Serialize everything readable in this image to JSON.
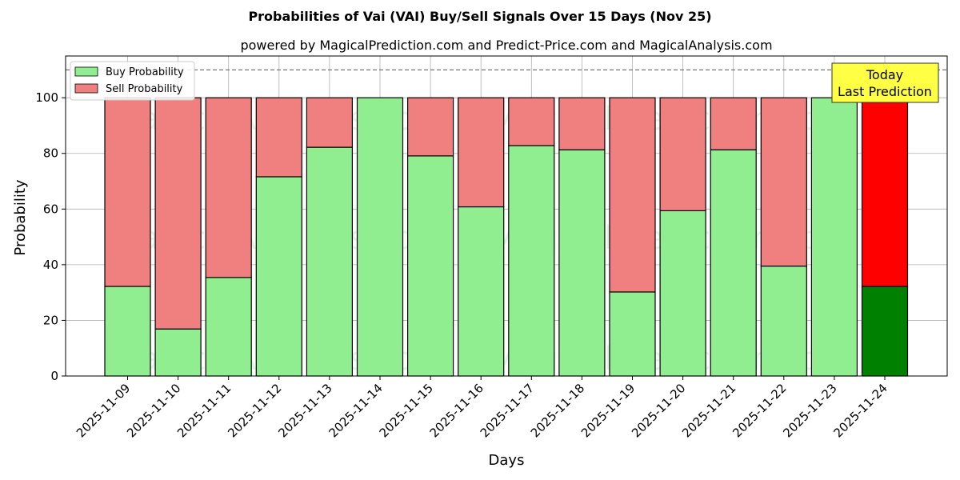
{
  "chart_data": {
    "type": "bar",
    "stacked": true,
    "title": "Probabilities of Vai (VAI) Buy/Sell Signals Over 15 Days (Nov 25)",
    "subtitle": "powered by MagicalPrediction.com and Predict-Price.com and MagicalAnalysis.com",
    "xlabel": "Days",
    "ylabel": "Probability",
    "ylim": [
      0,
      115
    ],
    "yticks": [
      0,
      20,
      40,
      60,
      80,
      100
    ],
    "grid": true,
    "legend_position": "top-left",
    "threshold_line": 110,
    "categories": [
      "2025-11-09",
      "2025-11-10",
      "2025-11-11",
      "2025-11-12",
      "2025-11-13",
      "2025-11-14",
      "2025-11-15",
      "2025-11-16",
      "2025-11-17",
      "2025-11-18",
      "2025-11-19",
      "2025-11-20",
      "2025-11-21",
      "2025-11-22",
      "2025-11-23",
      "2025-11-24"
    ],
    "series": [
      {
        "name": "Buy Probability",
        "color": "#90ee90",
        "highlight_color": "#008000",
        "values": [
          32.2,
          16.9,
          35.4,
          71.6,
          82.2,
          100,
          79.1,
          60.8,
          82.8,
          81.3,
          30.2,
          59.4,
          81.3,
          39.5,
          100,
          32.2
        ]
      },
      {
        "name": "Sell Probability",
        "color": "#f08080",
        "highlight_color": "#ff0000",
        "values": [
          67.8,
          83.1,
          64.6,
          28.4,
          17.8,
          0,
          20.9,
          39.2,
          17.2,
          18.7,
          69.8,
          40.6,
          18.7,
          60.5,
          0,
          67.8
        ]
      }
    ],
    "highlight_index": 15,
    "annotation": {
      "lines": [
        "Today",
        "Last Prediction"
      ],
      "background": "#ffff44"
    },
    "watermarks": [
      "MagicalAnalysis.com",
      "MagicalPrediction.com"
    ]
  }
}
